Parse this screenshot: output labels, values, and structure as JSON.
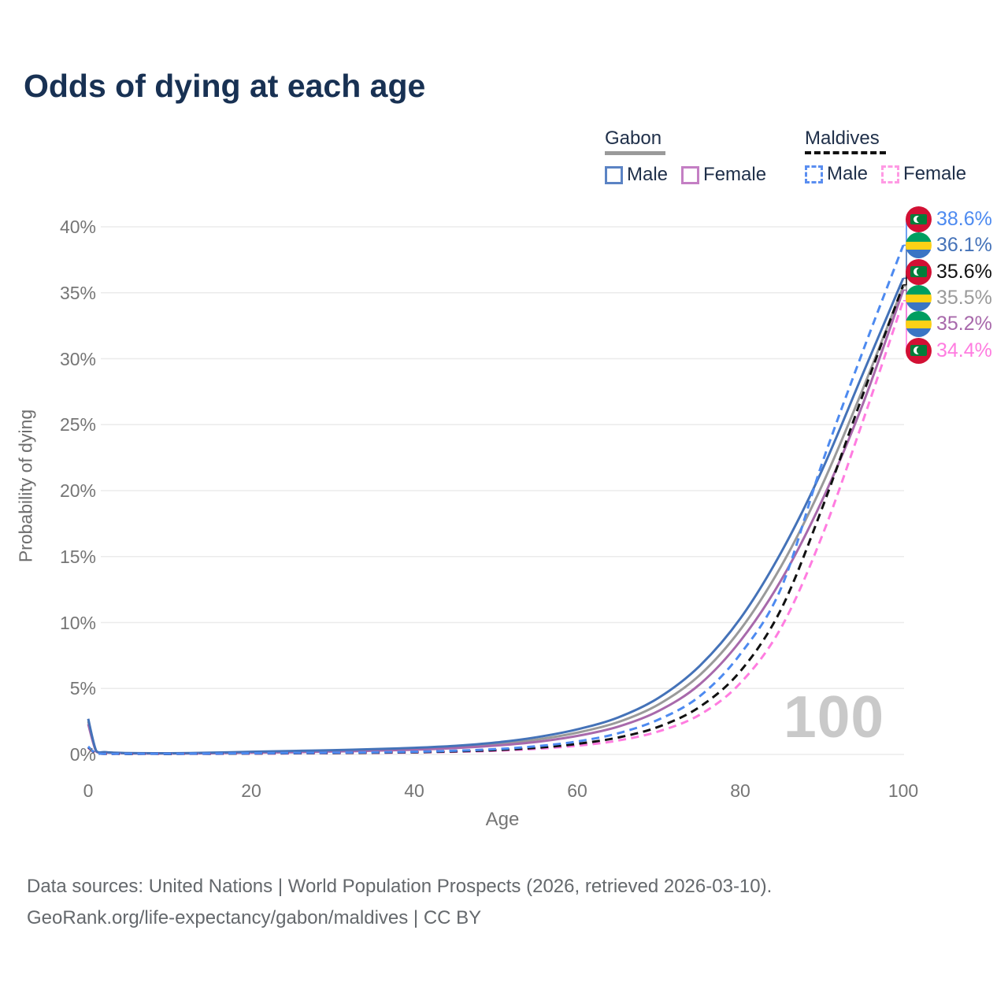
{
  "title": "Odds of dying at each age",
  "legend": {
    "groups": [
      {
        "label": "Gabon",
        "line_style": "solid",
        "underline_color": "#9a9a9a",
        "items": [
          {
            "label": "Male",
            "color": "#5b83c4",
            "dashed": false
          },
          {
            "label": "Female",
            "color": "#c47fc4",
            "dashed": false
          }
        ]
      },
      {
        "label": "Maldives",
        "line_style": "dashed",
        "underline_color": "#111111",
        "items": [
          {
            "label": "Male",
            "color": "#5a8ef0",
            "dashed": true
          },
          {
            "label": "Female",
            "color": "#ff9ae4",
            "dashed": true
          }
        ]
      }
    ]
  },
  "chart_data": {
    "type": "line",
    "title": "Odds of dying at each age",
    "xlabel": "Age",
    "ylabel": "Probability of dying",
    "xlim": [
      0,
      100
    ],
    "ylim": [
      0,
      40
    ],
    "grid": true,
    "x_ticks": [
      "0",
      "20",
      "40",
      "60",
      "80",
      "100"
    ],
    "y_ticks": [
      "0%",
      "5%",
      "10%",
      "15%",
      "20%",
      "25%",
      "30%",
      "35%",
      "40%"
    ],
    "x": [
      0,
      1,
      2,
      3,
      4,
      5,
      10,
      15,
      20,
      25,
      30,
      35,
      40,
      45,
      50,
      55,
      60,
      65,
      70,
      75,
      80,
      85,
      90,
      95,
      100
    ],
    "series": [
      {
        "name": "Gabon Both sexes",
        "country": "Gabon",
        "sex": "Both",
        "color": "#9a9a9a",
        "dashed": false,
        "end_label": "35.5%",
        "end_value": 35.5,
        "slot": 3,
        "flag": "gabon",
        "values": [
          2.5,
          0.23,
          0.16,
          0.13,
          0.11,
          0.09,
          0.08,
          0.11,
          0.17,
          0.22,
          0.27,
          0.34,
          0.43,
          0.56,
          0.78,
          1.12,
          1.65,
          2.45,
          3.8,
          6.0,
          9.45,
          14.25,
          20.35,
          27.65,
          35.5
        ]
      },
      {
        "name": "Gabon Female",
        "country": "Gabon",
        "sex": "Female",
        "color": "#a869ab",
        "dashed": false,
        "end_label": "35.2%",
        "end_value": 35.2,
        "slot": 4,
        "flag": "gabon",
        "values": [
          2.3,
          0.21,
          0.15,
          0.12,
          0.1,
          0.08,
          0.07,
          0.09,
          0.13,
          0.17,
          0.22,
          0.28,
          0.36,
          0.48,
          0.67,
          0.95,
          1.4,
          2.1,
          3.3,
          5.3,
          8.6,
          13.2,
          19.2,
          26.5,
          35.2
        ]
      },
      {
        "name": "Gabon Male",
        "country": "Gabon",
        "sex": "Male",
        "color": "#4472b8",
        "dashed": false,
        "end_label": "36.1%",
        "end_value": 36.1,
        "slot": 1,
        "flag": "gabon",
        "values": [
          2.7,
          0.25,
          0.18,
          0.14,
          0.12,
          0.1,
          0.09,
          0.13,
          0.2,
          0.26,
          0.32,
          0.4,
          0.5,
          0.65,
          0.9,
          1.3,
          1.9,
          2.8,
          4.3,
          6.7,
          10.3,
          15.3,
          21.5,
          28.8,
          36.1
        ]
      },
      {
        "name": "Maldives Female",
        "country": "Maldives",
        "sex": "Female",
        "color": "#ff7ce0",
        "dashed": true,
        "end_label": "34.4%",
        "end_value": 34.4,
        "slot": 5,
        "flag": "maldives",
        "values": [
          0.5,
          0.05,
          0.04,
          0.03,
          0.03,
          0.03,
          0.03,
          0.04,
          0.06,
          0.08,
          0.1,
          0.12,
          0.15,
          0.2,
          0.28,
          0.43,
          0.66,
          1.05,
          1.75,
          3.0,
          5.4,
          9.6,
          16.5,
          25.2,
          34.4
        ]
      },
      {
        "name": "Maldives Both sexes",
        "country": "Maldives",
        "sex": "Both",
        "color": "#111111",
        "dashed": true,
        "end_label": "35.6%",
        "end_value": 35.6,
        "slot": 2,
        "flag": "maldives",
        "values": [
          0.55,
          0.05,
          0.04,
          0.04,
          0.03,
          0.03,
          0.03,
          0.05,
          0.07,
          0.09,
          0.11,
          0.13,
          0.17,
          0.23,
          0.33,
          0.5,
          0.8,
          1.28,
          2.1,
          3.6,
          6.3,
          11.0,
          18.6,
          27.2,
          35.6
        ]
      },
      {
        "name": "Maldives Male",
        "country": "Maldives",
        "sex": "Male",
        "color": "#4d8af0",
        "dashed": true,
        "end_label": "38.6%",
        "end_value": 38.6,
        "slot": 0,
        "flag": "maldives",
        "values": [
          0.6,
          0.06,
          0.05,
          0.04,
          0.04,
          0.04,
          0.04,
          0.06,
          0.09,
          0.11,
          0.13,
          0.16,
          0.2,
          0.28,
          0.4,
          0.62,
          0.98,
          1.6,
          2.65,
          4.4,
          7.6,
          12.6,
          22.0,
          30.5,
          38.6
        ]
      }
    ],
    "legend_position": "top-right"
  },
  "watermark": "100",
  "footer": {
    "line1": "Data sources: United Nations | World Population Prospects (2026, retrieved 2026-03-10).",
    "line2": "GeoRank.org/life-expectancy/gabon/maldives | CC BY"
  },
  "colors": {
    "title": "#183153",
    "axis_text": "#757575",
    "gridline": "#ebebeb",
    "watermark": "#c9c9c9",
    "gabon_flag": [
      "#009e60",
      "#fcd116",
      "#3a75c4"
    ],
    "maldives_flag": [
      "#d21034",
      "#007e3a",
      "#ffffff"
    ]
  }
}
